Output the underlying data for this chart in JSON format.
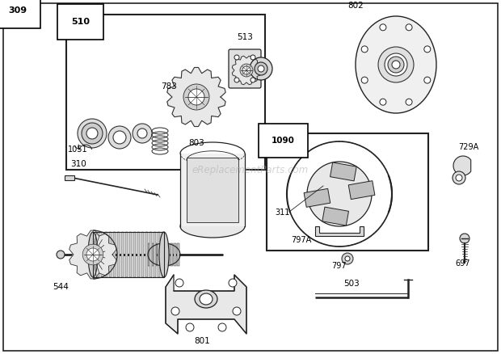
{
  "bg_color": "#ffffff",
  "border_color": "#333333",
  "watermark": "eReplacementParts.com",
  "fig_w": 6.2,
  "fig_h": 4.38,
  "dpi": 100
}
